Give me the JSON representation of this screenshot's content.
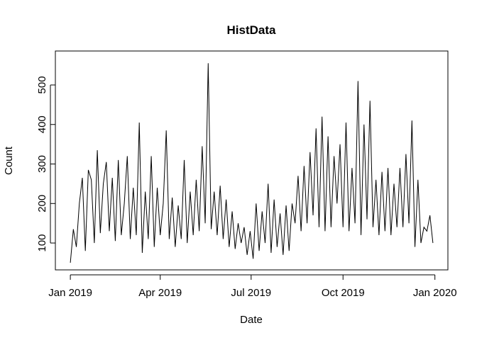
{
  "chart_data": {
    "type": "line",
    "title": "HistData",
    "x_label": "Date",
    "y_label": "Count",
    "x": [
      0,
      3,
      6,
      9,
      12,
      15,
      18,
      21,
      24,
      27,
      30,
      33,
      36,
      39,
      42,
      45,
      48,
      51,
      54,
      57,
      60,
      63,
      66,
      69,
      72,
      75,
      78,
      81,
      84,
      87,
      90,
      93,
      96,
      99,
      102,
      105,
      108,
      111,
      114,
      117,
      120,
      123,
      126,
      129,
      132,
      135,
      138,
      141,
      144,
      147,
      150,
      153,
      156,
      159,
      162,
      165,
      168,
      171,
      174,
      177,
      180,
      183,
      186,
      189,
      192,
      195,
      198,
      201,
      204,
      207,
      210,
      213,
      216,
      219,
      222,
      225,
      228,
      231,
      234,
      237,
      240,
      243,
      246,
      249,
      252,
      255,
      258,
      261,
      264,
      267,
      270,
      273,
      276,
      279,
      282,
      285,
      288,
      291,
      294,
      297,
      300,
      303,
      306,
      309,
      312,
      315,
      318,
      321,
      324,
      327,
      330,
      333,
      336,
      339,
      342,
      345,
      348,
      351,
      354,
      357,
      360,
      363
    ],
    "series": [
      {
        "name": "Count",
        "color": "#000000",
        "values": [
          50,
          135,
          90,
          200,
          265,
          80,
          285,
          260,
          100,
          335,
          125,
          250,
          305,
          130,
          265,
          105,
          310,
          120,
          200,
          320,
          110,
          240,
          120,
          405,
          75,
          230,
          110,
          320,
          90,
          240,
          120,
          200,
          385,
          110,
          215,
          90,
          195,
          110,
          310,
          100,
          230,
          120,
          260,
          130,
          345,
          150,
          555,
          135,
          230,
          120,
          245,
          110,
          210,
          90,
          180,
          85,
          150,
          100,
          140,
          70,
          130,
          60,
          200,
          80,
          180,
          100,
          250,
          75,
          210,
          90,
          175,
          70,
          195,
          80,
          200,
          150,
          270,
          130,
          295,
          150,
          330,
          170,
          390,
          140,
          420,
          130,
          370,
          140,
          320,
          200,
          350,
          140,
          405,
          130,
          290,
          150,
          510,
          120,
          400,
          160,
          460,
          140,
          260,
          120,
          280,
          130,
          290,
          120,
          250,
          140,
          290,
          140,
          325,
          150,
          410,
          90,
          260,
          100,
          140,
          130,
          170,
          100
        ]
      }
    ],
    "xlim": [
      -15,
      378
    ],
    "ylim": [
      32,
      586
    ],
    "xticks": [
      {
        "value": 0,
        "label": "Jan 2019"
      },
      {
        "value": 90,
        "label": "Apr 2019"
      },
      {
        "value": 181,
        "label": "Jul 2019"
      },
      {
        "value": 273,
        "label": "Oct 2019"
      },
      {
        "value": 365,
        "label": "Jan 2020"
      }
    ],
    "yticks": [
      100,
      200,
      300,
      400,
      500
    ]
  }
}
